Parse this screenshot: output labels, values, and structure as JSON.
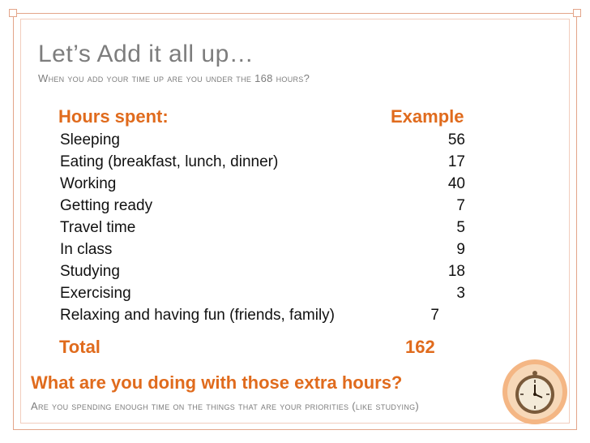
{
  "slide": {
    "title": "Let’s Add it all up…",
    "subtitle": "When you add your time up are you under the 168 hours?"
  },
  "table": {
    "header_label": "Hours spent:",
    "header_value": "Example",
    "rows": [
      {
        "label": "Sleeping",
        "value": "56"
      },
      {
        "label": "Eating (breakfast, lunch, dinner)",
        "value": "17"
      },
      {
        "label": "Working",
        "value": "40"
      },
      {
        "label": "Getting ready",
        "value": "7"
      },
      {
        "label": "Travel time",
        "value": "5"
      },
      {
        "label": "In class",
        "value": "9"
      },
      {
        "label": "Studying",
        "value": "18"
      },
      {
        "label": "Exercising",
        "value": "3"
      },
      {
        "label": "Relaxing and having fun (friends, family)",
        "value": "7"
      }
    ],
    "total_label": "Total",
    "total_value": "162"
  },
  "footer": {
    "question": "What are you doing with those extra hours?",
    "note": "Are you spending enough time on the things that are your priorities (like studying)"
  },
  "colors": {
    "accent": "#e06b1d",
    "frame": "#e3a58a",
    "muted_text": "#7d7d7d"
  },
  "icons": {
    "clock": "clock-icon"
  }
}
